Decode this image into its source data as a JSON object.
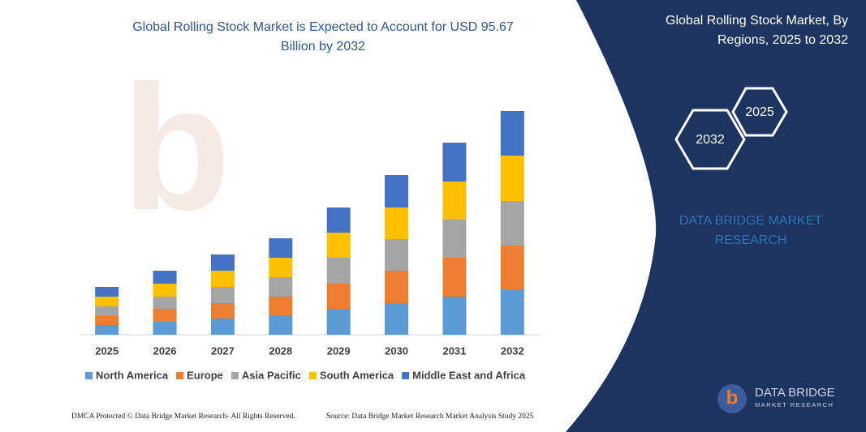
{
  "chart_data": {
    "type": "stacked-bar",
    "title": "Global Rolling Stock Market is Expected to Account for USD 95.67",
    "title_line2": "Billion by 2032",
    "categories": [
      "2025",
      "2026",
      "2027",
      "2028",
      "2029",
      "2030",
      "2031",
      "2032"
    ],
    "series": [
      {
        "name": "North America",
        "color": "#5b9bd5",
        "values": [
          12,
          16,
          20,
          24,
          32,
          39,
          47,
          55
        ]
      },
      {
        "name": "Europe",
        "color": "#ed7d31",
        "values": [
          11,
          16,
          19,
          23,
          31,
          40,
          48,
          55
        ]
      },
      {
        "name": "Asia Pacific",
        "color": "#a5a5a5",
        "values": [
          12,
          15,
          20,
          24,
          32,
          39,
          47,
          55
        ]
      },
      {
        "name": "South America",
        "color": "#ffc000",
        "values": [
          12,
          16,
          20,
          24,
          31,
          39,
          47,
          56
        ]
      },
      {
        "name": "Middle East and Africa",
        "color": "#4472c4",
        "values": [
          12,
          16,
          20,
          24,
          31,
          40,
          48,
          55
        ]
      }
    ],
    "ylim": [
      0,
      300
    ]
  },
  "panel": {
    "title": "Global Rolling Stock Market, By",
    "title_line2": "Regions, 2025 to 2032",
    "hex_a": "2032",
    "hex_b": "2025",
    "brand": "DATA BRIDGE MARKET",
    "brand_line2": "RESEARCH"
  },
  "footer": {
    "left": "DMCA Protected © Data Bridge Market Research-  All Rights Reserved.",
    "right": "Source: Data Bridge Market Research  Market Analysis Study 2025"
  },
  "logo": {
    "name": "DATA BRIDGE",
    "sub": "MARKET RESEARCH"
  }
}
